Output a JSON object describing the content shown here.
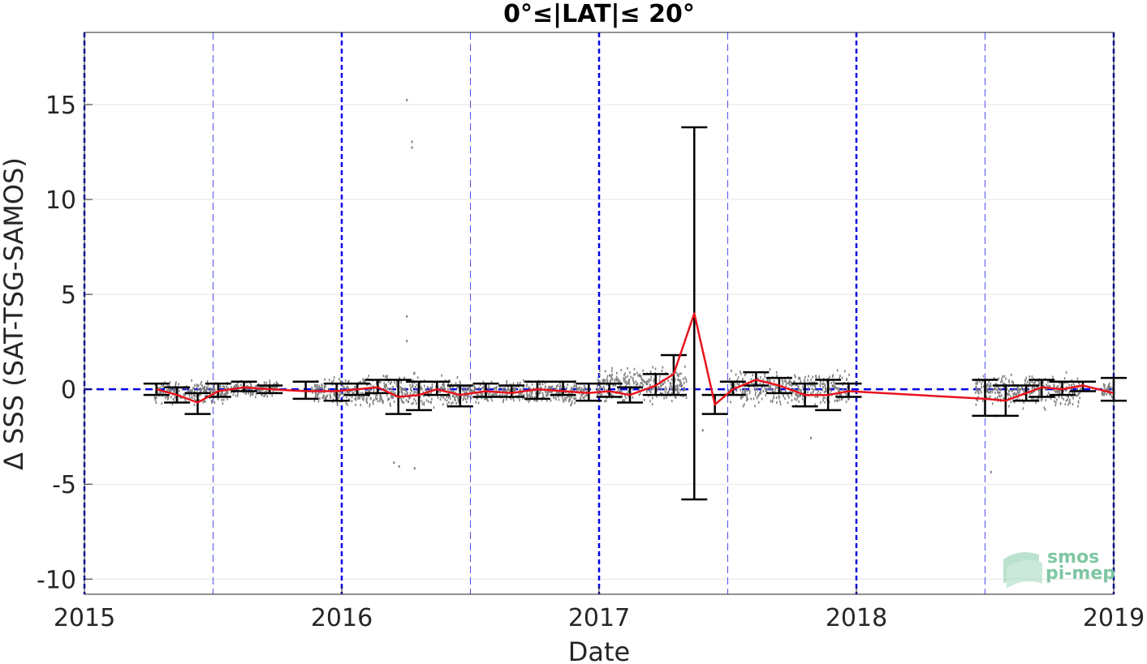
{
  "chart_data": {
    "type": "line",
    "title": "0°≤|LAT|≤ 20°",
    "xlabel": "Date",
    "ylabel": "Δ SSS (SAT-TSG-SAMOS)",
    "xlim": [
      2015.0,
      2019.0
    ],
    "ylim": [
      -10.8,
      18.8
    ],
    "x_ticks": [
      2015,
      2016,
      2017,
      2018,
      2019
    ],
    "x_tick_labels": [
      "2015",
      "2016",
      "2017",
      "2018",
      "2019"
    ],
    "y_ticks": [
      -10,
      -5,
      0,
      5,
      10,
      15
    ],
    "y_tick_labels": [
      "-10",
      "-5",
      "0",
      "5",
      "10",
      "15"
    ],
    "grid": "horizontal",
    "year_lines": [
      2015.0,
      2016.0,
      2017.0,
      2018.0,
      2019.0
    ],
    "half_year_lines": [
      2015.5,
      2016.5,
      2017.5,
      2018.5
    ],
    "zero_line": 0,
    "colors": {
      "mean_line": "#e8141c",
      "error_bar": "#000000",
      "scatter": "#808080",
      "reference_lines": "#0000e6",
      "grid": "#e3e3e3"
    },
    "series": [
      {
        "x": [
          2015.28,
          2015.36,
          2015.44,
          2015.52,
          2015.62,
          2015.72,
          2015.86,
          2015.98,
          2016.06,
          2016.14,
          2016.22,
          2016.3,
          2016.37,
          2016.46,
          2016.56,
          2016.66,
          2016.76,
          2016.86,
          2016.96,
          2017.04,
          2017.12,
          2017.22,
          2017.29,
          2017.37,
          2017.45,
          2017.52,
          2017.61,
          2017.7,
          2017.8,
          2017.89,
          2017.97,
          2018.5,
          2018.58,
          2018.66,
          2018.72,
          2018.8,
          2018.88,
          2019.0
        ],
        "mean": [
          0.0,
          -0.3,
          -0.7,
          -0.1,
          0.1,
          0.0,
          -0.1,
          -0.1,
          0.0,
          0.1,
          -0.4,
          -0.3,
          0.0,
          -0.3,
          -0.1,
          -0.2,
          0.0,
          -0.1,
          -0.2,
          -0.1,
          -0.3,
          0.2,
          0.8,
          4.0,
          -0.8,
          0.0,
          0.5,
          0.2,
          -0.3,
          -0.3,
          -0.1,
          -0.5,
          -0.6,
          -0.2,
          0.1,
          0.0,
          0.2,
          -0.2
        ],
        "err_low": [
          -0.3,
          -0.7,
          -1.3,
          -0.4,
          -0.1,
          -0.2,
          -0.5,
          -0.6,
          -0.3,
          -0.2,
          -1.3,
          -1.1,
          -0.3,
          -0.9,
          -0.4,
          -0.4,
          -0.5,
          -0.3,
          -0.6,
          -0.4,
          -0.7,
          -0.3,
          -0.3,
          -5.8,
          -1.3,
          -0.3,
          0.2,
          -0.2,
          -0.9,
          -1.1,
          -0.4,
          -1.4,
          -1.4,
          -0.6,
          -0.4,
          -0.3,
          -0.1,
          -0.6
        ],
        "err_high": [
          0.3,
          0.1,
          -0.2,
          0.3,
          0.4,
          0.2,
          0.4,
          0.3,
          0.3,
          0.5,
          0.5,
          0.4,
          0.4,
          0.2,
          0.3,
          0.2,
          0.4,
          0.4,
          0.3,
          0.3,
          0.1,
          0.8,
          1.8,
          13.8,
          -0.3,
          0.4,
          0.9,
          0.6,
          0.3,
          0.5,
          0.3,
          0.5,
          0.2,
          0.2,
          0.5,
          0.4,
          0.4,
          0.6
        ]
      }
    ],
    "scatter_clusters": [
      {
        "x_start": 2015.27,
        "x_end": 2015.56,
        "center": -0.1,
        "spread": 0.6
      },
      {
        "x_start": 2015.56,
        "x_end": 2015.75,
        "center": 0.1,
        "spread": 0.4
      },
      {
        "x_start": 2015.88,
        "x_end": 2016.07,
        "center": -0.1,
        "spread": 0.7
      },
      {
        "x_start": 2016.07,
        "x_end": 2016.47,
        "center": -0.1,
        "spread": 0.9
      },
      {
        "x_start": 2016.47,
        "x_end": 2016.96,
        "center": -0.1,
        "spread": 0.6
      },
      {
        "x_start": 2016.99,
        "x_end": 2017.34,
        "center": 0.3,
        "spread": 0.9
      },
      {
        "x_start": 2017.5,
        "x_end": 2017.97,
        "center": 0.1,
        "spread": 0.9
      },
      {
        "x_start": 2018.46,
        "x_end": 2018.87,
        "center": 0.0,
        "spread": 0.9
      },
      {
        "x_start": 2018.95,
        "x_end": 2019.0,
        "center": 0.0,
        "spread": 0.4
      }
    ],
    "outliers": [
      {
        "x": 2016.25,
        "y": 15.3
      },
      {
        "x": 2016.27,
        "y": 13.1
      },
      {
        "x": 2016.27,
        "y": 12.8
      },
      {
        "x": 2016.25,
        "y": 3.9
      },
      {
        "x": 2016.25,
        "y": 2.6
      },
      {
        "x": 2016.2,
        "y": -3.8
      },
      {
        "x": 2016.22,
        "y": -4.0
      },
      {
        "x": 2016.28,
        "y": -4.1
      },
      {
        "x": 2017.4,
        "y": -2.1
      },
      {
        "x": 2017.82,
        "y": -2.5
      },
      {
        "x": 2018.52,
        "y": -4.3
      }
    ]
  },
  "logo": {
    "line1": "smos",
    "line2": "pi-mep"
  }
}
